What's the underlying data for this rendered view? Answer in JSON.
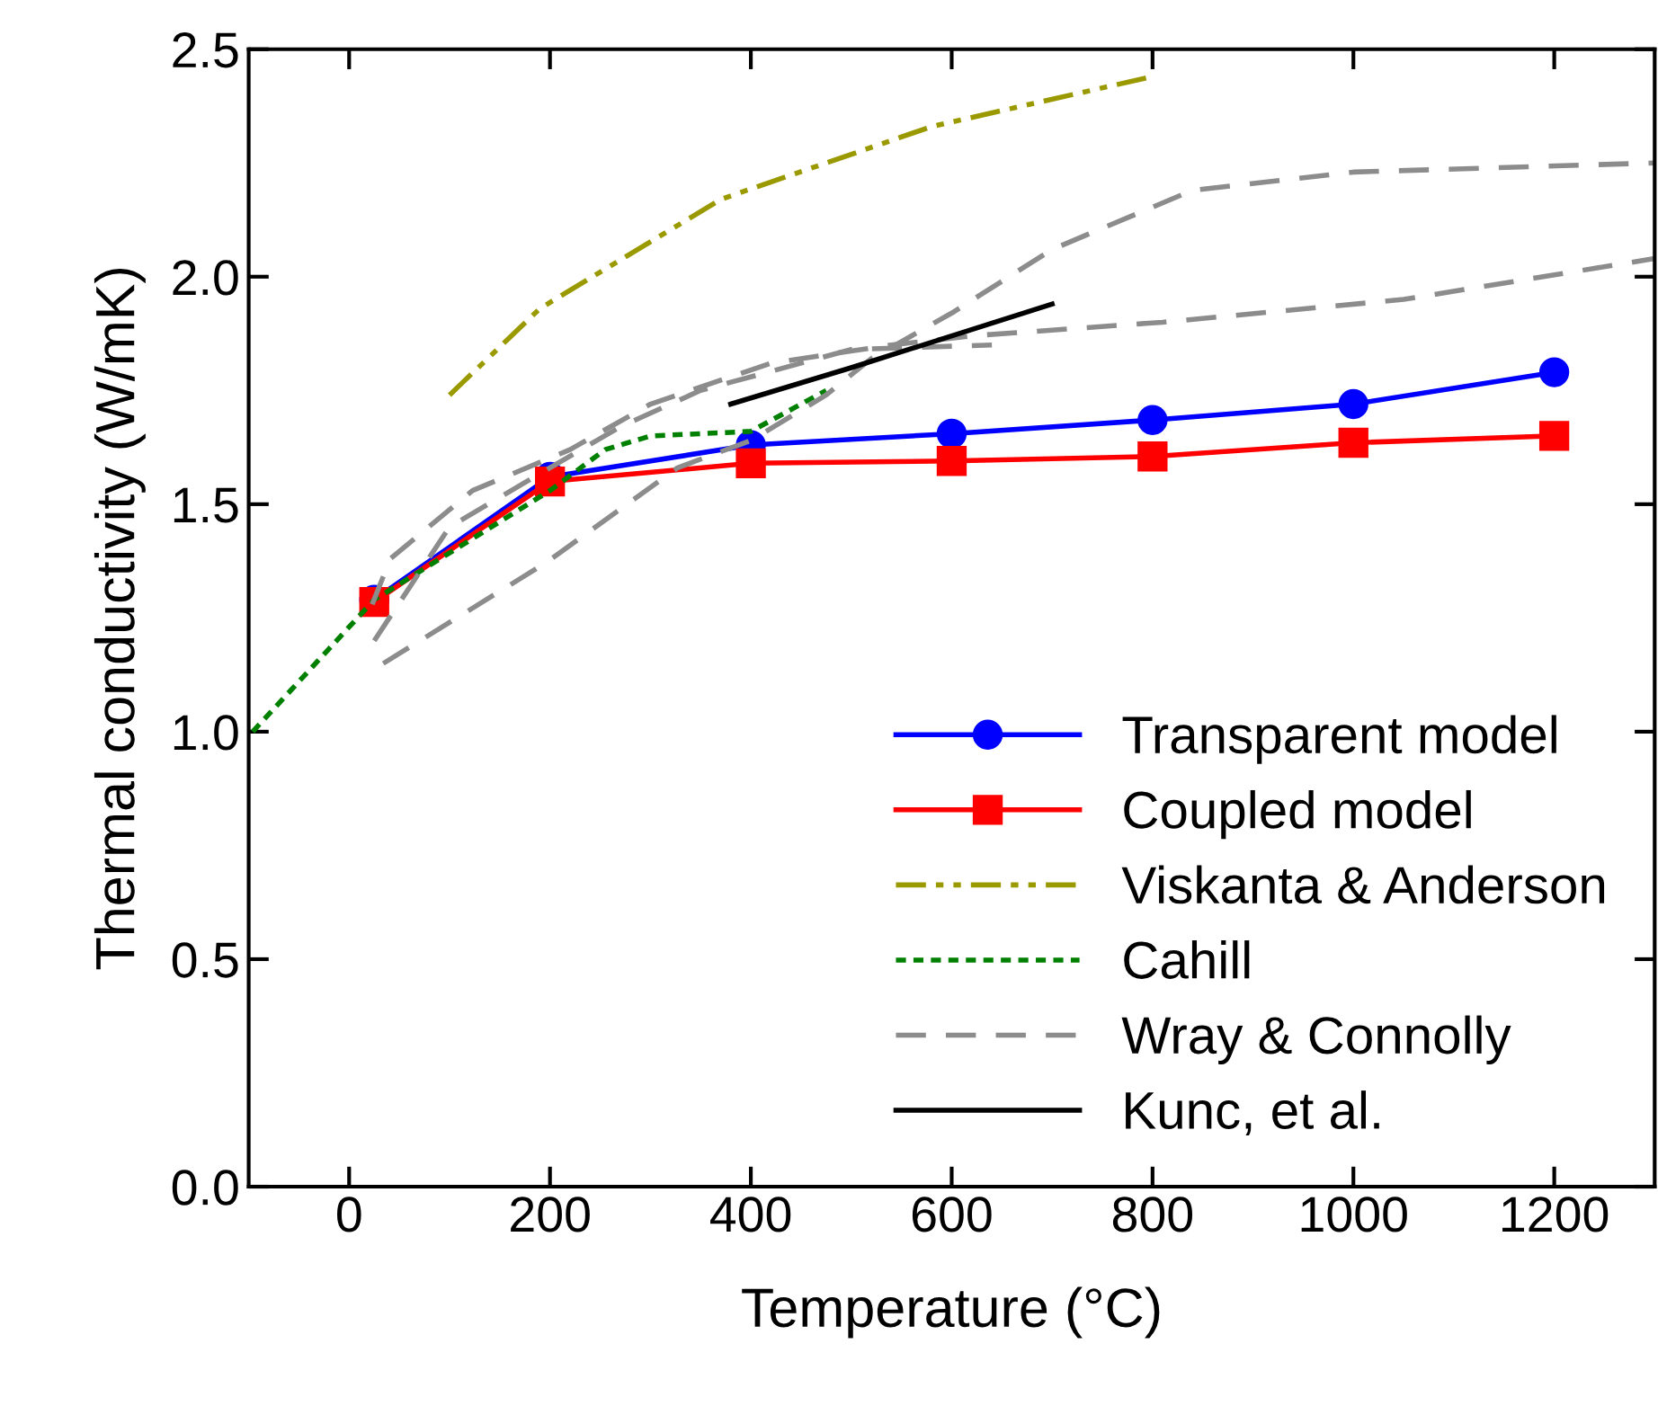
{
  "chart_data": {
    "type": "line",
    "xlabel": "Temperature (°C)",
    "ylabel": "Thermal conductivity (W/mK)",
    "xlim": [
      -100,
      1300
    ],
    "xticks": [
      0,
      200,
      400,
      600,
      800,
      1000,
      1200
    ],
    "ylim": [
      0,
      2.5
    ],
    "yticks": [
      {
        "value": 0,
        "label": "0.0"
      },
      0.5,
      {
        "value": 1,
        "label": "1.0"
      },
      1.5,
      {
        "value": 2,
        "label": "2.0"
      },
      2.5
    ],
    "grid": false,
    "legend": "bottom right",
    "series": [
      {
        "name": "Transparent model",
        "color": "#0000ff",
        "marker": "circle",
        "line_style": "solid",
        "x": [
          25,
          200,
          400,
          600,
          800,
          1000,
          1200
        ],
        "values": [
          1.29,
          1.56,
          1.63,
          1.655,
          1.685,
          1.72,
          1.79
        ]
      },
      {
        "name": "Coupled model",
        "color": "#ff0000",
        "marker": "square",
        "line_style": "solid",
        "x": [
          25,
          200,
          400,
          600,
          800,
          1000,
          1200
        ],
        "values": [
          1.285,
          1.55,
          1.59,
          1.595,
          1.605,
          1.635,
          1.65
        ]
      },
      {
        "name": "Viskanta & Anderson",
        "color": "#9a9a00",
        "marker": "none",
        "line_style": "dashdotdot",
        "x": [
          100,
          190,
          370,
          580,
          800
        ],
        "values": [
          1.74,
          1.93,
          2.17,
          2.33,
          2.44
        ]
      },
      {
        "name": "Cahill",
        "color": "#008000",
        "marker": "none",
        "line_style": "dotted",
        "x": [
          -96,
          25,
          200,
          255,
          300,
          400,
          475
        ],
        "values": [
          1.0,
          1.29,
          1.53,
          1.62,
          1.65,
          1.66,
          1.75
        ]
      },
      {
        "name": "Wray & Connolly",
        "color": "#8c8c8c",
        "marker": "none",
        "line_style": "dashed",
        "x": [
          34,
          195,
          327,
          400,
          475,
          520,
          600,
          700,
          840,
          1000,
          1300
        ],
        "values": [
          1.15,
          1.37,
          1.58,
          1.64,
          1.74,
          1.82,
          1.92,
          2.06,
          2.19,
          2.23,
          2.25
        ]
      },
      {
        "color": "#8c8c8c",
        "marker": "none",
        "line_style": "dashed",
        "x": [
          23,
          41,
          123,
          220,
          300,
          420,
          540,
          620,
          810,
          1050,
          1300
        ],
        "values": [
          1.28,
          1.38,
          1.53,
          1.62,
          1.72,
          1.81,
          1.85,
          1.87,
          1.9,
          1.95,
          2.04
        ]
      },
      {
        "color": "#8c8c8c",
        "marker": "none",
        "line_style": "dashed",
        "x": [
          25,
          100,
          200,
          270,
          350,
          500,
          640
        ],
        "values": [
          1.2,
          1.45,
          1.58,
          1.67,
          1.75,
          1.84,
          1.85
        ]
      },
      {
        "name": "Kunc, et al.",
        "color": "#000000",
        "marker": "none",
        "line_style": "solid",
        "x": [
          380,
          500,
          700
        ],
        "values": [
          1.72,
          1.8,
          1.94
        ]
      }
    ]
  }
}
